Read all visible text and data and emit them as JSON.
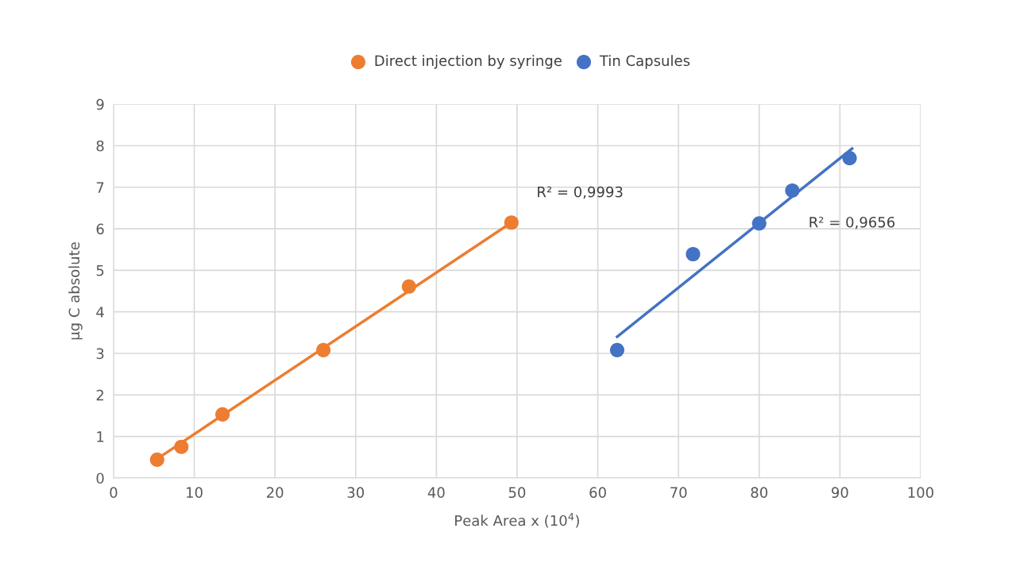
{
  "chart_data": {
    "type": "scatter",
    "xlabel": "Peak Area x (10$^{4}$)",
    "ylabel": "µg C absolute",
    "series": [
      {
        "name": "Direct injection by syringe",
        "color": "#ed7d31",
        "x": [
          5.4,
          8.4,
          13.5,
          26.0,
          36.6,
          49.3
        ],
        "values": [
          0.44,
          0.75,
          1.53,
          3.08,
          4.61,
          6.15
        ]
      },
      {
        "name": "Tin Capsules",
        "color": "#4472c4",
        "x": [
          62.4,
          71.8,
          80.0,
          84.1,
          91.2
        ],
        "values": [
          3.08,
          5.39,
          6.13,
          6.92,
          7.7
        ]
      },
      {
        "type": "line",
        "marker": "none",
        "color": "#ed7d31",
        "x": [
          5.4,
          49.3
        ],
        "values": [
          0.46,
          6.15
        ]
      },
      {
        "type": "line",
        "marker": "none",
        "color": "#4472c4",
        "x": [
          62.4,
          91.5
        ],
        "values": [
          3.4,
          7.93
        ]
      }
    ],
    "annotations": [
      "R² = 0,9993",
      "R² = 0,9656"
    ],
    "xlim": [
      0,
      100
    ],
    "xticks": [
      0,
      10,
      20,
      30,
      40,
      50,
      60,
      70,
      80,
      90,
      100
    ],
    "ylim": [
      0,
      9
    ],
    "yticks": [
      0,
      1,
      2,
      3,
      4,
      5,
      6,
      7,
      8,
      9
    ],
    "grid": true,
    "legend": "top",
    "marker": "circle"
  }
}
